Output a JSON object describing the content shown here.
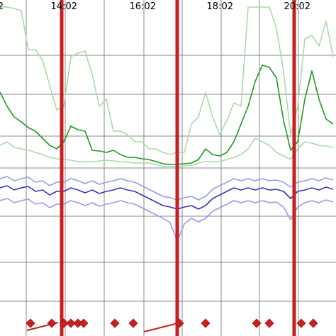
{
  "chart_data": {
    "type": "line",
    "xlim": [
      0,
      474
    ],
    "ylim": [
      0,
      474
    ],
    "xticks": [
      {
        "value": -12,
        "label": "2"
      },
      {
        "value": 92,
        "label": "14:02"
      },
      {
        "value": 203,
        "label": "16:02"
      },
      {
        "value": 312,
        "label": "18:02"
      },
      {
        "value": 421,
        "label": "20:02"
      }
    ],
    "xminorticks": [
      37,
      147,
      257,
      366
    ],
    "yticks": [
      396,
      341,
      282,
      237,
      169,
      104,
      49
    ],
    "grid": true,
    "x": [
      0,
      10,
      20,
      30,
      40,
      50,
      60,
      70,
      80,
      90,
      100,
      110,
      120,
      130,
      140,
      150,
      160,
      170,
      180,
      190,
      200,
      210,
      220,
      230,
      240,
      250,
      260,
      270,
      280,
      290,
      300,
      310,
      320,
      330,
      340,
      350,
      360,
      370,
      380,
      390,
      400,
      410,
      420,
      430,
      440,
      450,
      460,
      470
    ],
    "series": [
      {
        "color": "#a8dca8",
        "values": [
          464,
          464,
          462,
          459,
          404,
          404,
          389,
          354,
          319,
          324,
          394,
          399,
          402,
          369,
          324,
          334,
          289,
          289,
          284,
          274,
          274,
          264,
          264,
          259,
          256,
          259,
          259,
          299,
          309,
          344,
          309,
          284,
          304,
          329,
          324,
          464,
          464,
          464,
          464,
          434,
          374,
          284,
          324,
          419,
          424,
          409,
          444,
          394
        ]
      },
      {
        "color": "#a8dca8",
        "values": [
          269,
          274,
          266,
          264,
          262,
          259,
          256,
          252,
          250,
          249,
          248,
          246,
          246,
          246,
          247,
          248,
          247,
          246,
          245,
          244,
          244,
          244,
          242,
          239,
          239,
          239,
          240,
          241,
          244,
          246,
          246,
          246,
          249,
          252,
          256,
          264,
          279,
          274,
          269,
          259,
          254,
          249,
          264,
          274,
          272,
          269,
          268,
          266
        ]
      },
      {
        "color": "#9a9ae8",
        "values": [
          222,
          225,
          219,
          222,
          224,
          217,
          219,
          212,
          217,
          217,
          222,
          219,
          215,
          219,
          214,
          217,
          219,
          222,
          219,
          217,
          212,
          207,
          202,
          197,
          195,
          192,
          195,
          197,
          192,
          197,
          207,
          212,
          217,
          222,
          219,
          222,
          219,
          222,
          219,
          220,
          217,
          210,
          217,
          219,
          222,
          219,
          223,
          220
        ]
      },
      {
        "color": "#9a9ae8",
        "values": [
          191,
          194,
          188,
          191,
          193,
          186,
          188,
          181,
          186,
          186,
          191,
          188,
          184,
          188,
          183,
          186,
          188,
          191,
          188,
          186,
          181,
          176,
          171,
          166,
          160,
          134,
          158,
          166,
          161,
          166,
          176,
          181,
          186,
          191,
          188,
          191,
          188,
          191,
          188,
          189,
          182,
          164,
          182,
          188,
          191,
          188,
          192,
          189
        ]
      },
      {
        "color": "#1f9a1f",
        "values": [
          344,
          324,
          309,
          302,
          294,
          289,
          279,
          269,
          264,
          274,
          296,
          291,
          289,
          262,
          261,
          259,
          262,
          256,
          252,
          252,
          250,
          249,
          246,
          243,
          242,
          242,
          243,
          244,
          249,
          264,
          256,
          254,
          259,
          274,
          299,
          324,
          359,
          382,
          379,
          364,
          304,
          262,
          274,
          334,
          374,
          334,
          306,
          299
        ]
      },
      {
        "color": "#3434c4",
        "values": [
          209,
          212,
          206,
          209,
          211,
          204,
          206,
          199,
          204,
          204,
          209,
          206,
          202,
          206,
          201,
          204,
          206,
          209,
          206,
          204,
          199,
          194,
          189,
          184,
          182,
          179,
          182,
          184,
          179,
          184,
          194,
          199,
          204,
          209,
          206,
          209,
          206,
          209,
          206,
          207,
          204,
          194,
          204,
          206,
          209,
          206,
          210,
          207
        ]
      }
    ],
    "event_color": "#c82020",
    "events": [
      87,
      250,
      415
    ],
    "markers": [
      43,
      73,
      90,
      100,
      110,
      118,
      162,
      188,
      253,
      290,
      362,
      380,
      425,
      442
    ]
  }
}
